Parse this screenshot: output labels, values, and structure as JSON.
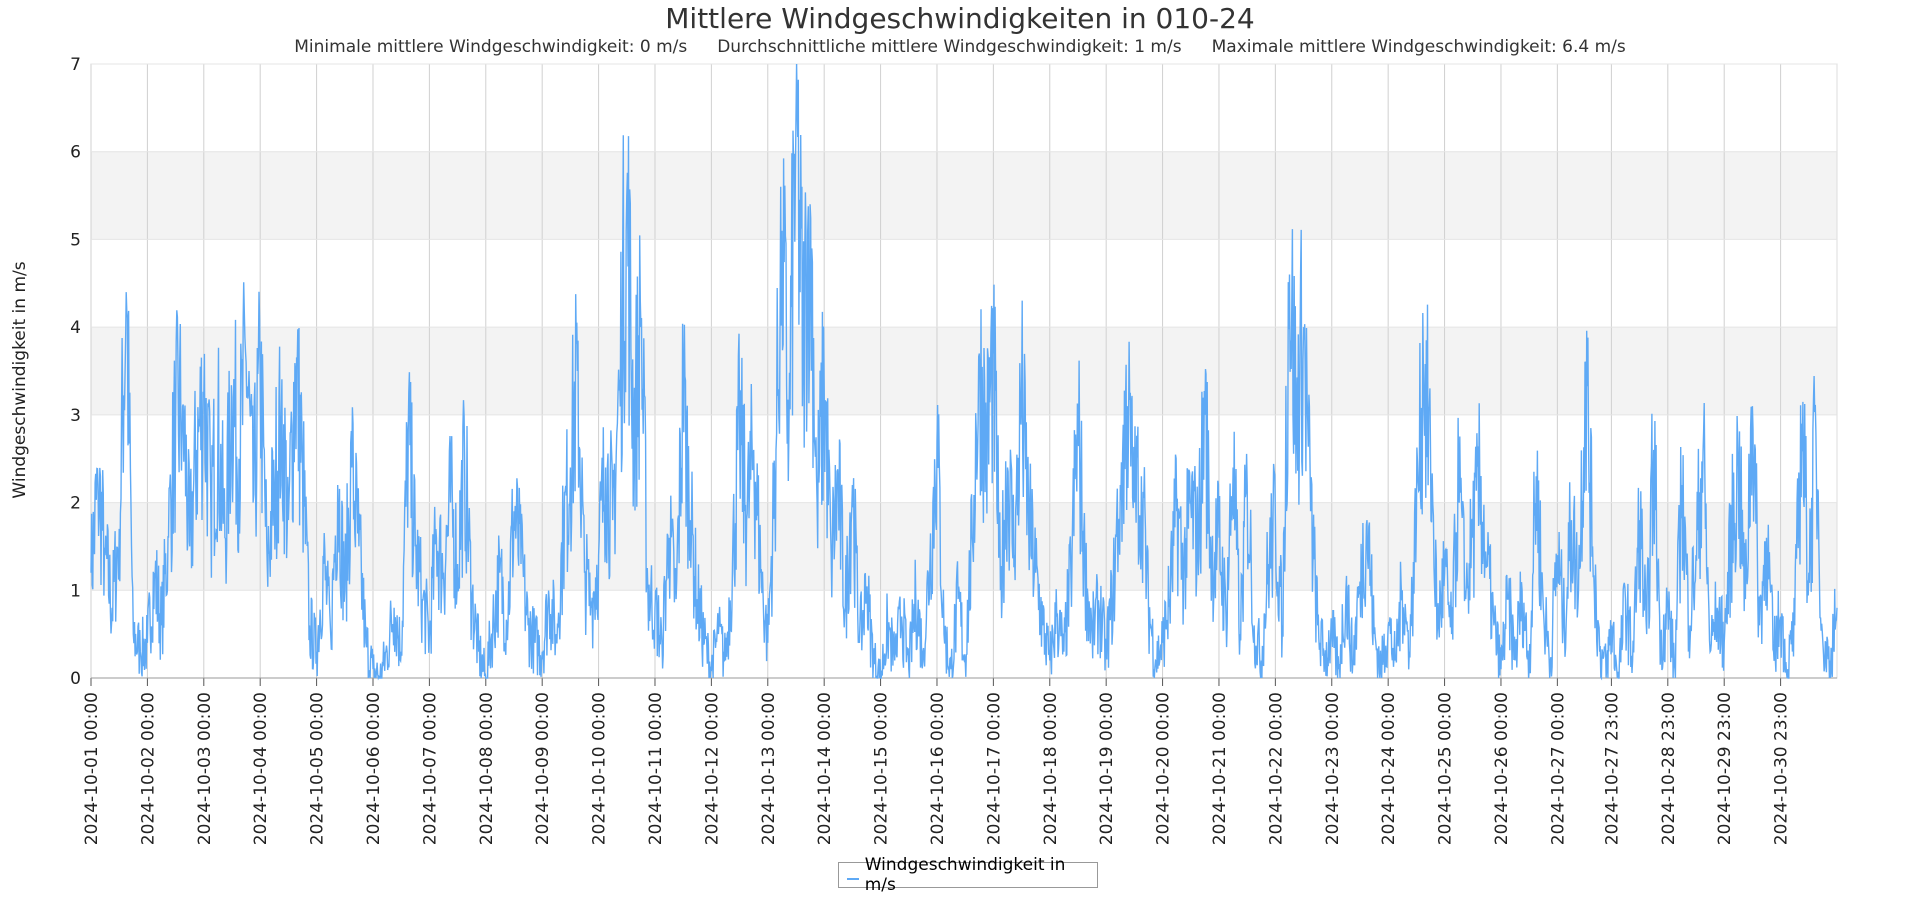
{
  "chart_data": {
    "type": "line",
    "title": "Mittlere Windgeschwindigkeiten in 010-24",
    "subtitle": {
      "min": "Minimale mittlere Windgeschwindigkeit: 0 m/s",
      "avg": "Durchschnittliche mittlere Windgeschwindigkeit: 1 m/s",
      "max": "Maximale mittlere Windgeschwindigkeit: 6.4 m/s"
    },
    "xlabel": "",
    "ylabel": "Windgeschwindigkeit in m/s",
    "ylim": [
      0,
      7
    ],
    "yticks": [
      0,
      1,
      2,
      3,
      4,
      5,
      6,
      7
    ],
    "grid": true,
    "legend_placement": "bottom-center",
    "x_tick_labels": [
      "2024-10-01 00:00",
      "2024-10-02 00:00",
      "2024-10-03 00:00",
      "2024-10-04 00:00",
      "2024-10-05 00:00",
      "2024-10-06 00:00",
      "2024-10-07 00:00",
      "2024-10-08 00:00",
      "2024-10-09 00:00",
      "2024-10-10 00:00",
      "2024-10-11 00:00",
      "2024-10-12 00:00",
      "2024-10-13 00:00",
      "2024-10-14 00:00",
      "2024-10-15 00:00",
      "2024-10-16 00:00",
      "2024-10-17 00:00",
      "2024-10-18 00:00",
      "2024-10-19 00:00",
      "2024-10-20 00:00",
      "2024-10-21 00:00",
      "2024-10-22 00:00",
      "2024-10-23 00:00",
      "2024-10-24 00:00",
      "2024-10-25 00:00",
      "2024-10-26 00:00",
      "2024-10-27 00:00",
      "2024-10-27 23:00",
      "2024-10-28 23:00",
      "2024-10-29 23:00",
      "2024-10-30 23:00"
    ],
    "series": [
      {
        "name": "Windgeschwindigkeit in m/s",
        "color": "#5ea9f5",
        "points": [
          [
            "2024-10-01 00:00",
            1.2
          ],
          [
            "2024-10-01 03:00",
            2.2
          ],
          [
            "2024-10-01 06:00",
            1.4
          ],
          [
            "2024-10-01 09:00",
            0.8
          ],
          [
            "2024-10-01 12:00",
            1.7
          ],
          [
            "2024-10-01 15:00",
            4.4
          ],
          [
            "2024-10-01 18:00",
            0.5
          ],
          [
            "2024-10-01 21:00",
            0.3
          ],
          [
            "2024-10-02 00:00",
            0.4
          ],
          [
            "2024-10-02 03:00",
            1.2
          ],
          [
            "2024-10-02 06:00",
            0.6
          ],
          [
            "2024-10-02 09:00",
            1.6
          ],
          [
            "2024-10-02 12:00",
            2.9
          ],
          [
            "2024-10-02 15:00",
            3.1
          ],
          [
            "2024-10-02 18:00",
            1.5
          ],
          [
            "2024-10-02 21:00",
            2.6
          ],
          [
            "2024-10-03 00:00",
            3.2
          ],
          [
            "2024-10-03 03:00",
            2.0
          ],
          [
            "2024-10-03 06:00",
            2.8
          ],
          [
            "2024-10-03 09:00",
            1.6
          ],
          [
            "2024-10-03 12:00",
            3.2
          ],
          [
            "2024-10-03 15:00",
            2.5
          ],
          [
            "2024-10-03 18:00",
            3.6
          ],
          [
            "2024-10-03 21:00",
            2.0
          ],
          [
            "2024-10-04 00:00",
            3.4
          ],
          [
            "2024-10-04 03:00",
            1.3
          ],
          [
            "2024-10-04 06:00",
            2.2
          ],
          [
            "2024-10-04 09:00",
            3.0
          ],
          [
            "2024-10-04 12:00",
            1.8
          ],
          [
            "2024-10-04 15:00",
            3.5
          ],
          [
            "2024-10-04 18:00",
            2.4
          ],
          [
            "2024-10-04 21:00",
            0.6
          ],
          [
            "2024-10-05 00:00",
            0.3
          ],
          [
            "2024-10-05 03:00",
            1.3
          ],
          [
            "2024-10-05 06:00",
            0.5
          ],
          [
            "2024-10-05 09:00",
            2.2
          ],
          [
            "2024-10-05 12:00",
            1.0
          ],
          [
            "2024-10-05 15:00",
            2.4
          ],
          [
            "2024-10-05 18:00",
            1.5
          ],
          [
            "2024-10-05 21:00",
            0.4
          ],
          [
            "2024-10-06 00:00",
            0.1
          ],
          [
            "2024-10-06 03:00",
            0.0
          ],
          [
            "2024-10-06 06:00",
            0.3
          ],
          [
            "2024-10-06 09:00",
            0.8
          ],
          [
            "2024-10-06 12:00",
            0.3
          ],
          [
            "2024-10-06 15:00",
            2.8
          ],
          [
            "2024-10-06 18:00",
            1.5
          ],
          [
            "2024-10-06 21:00",
            0.9
          ],
          [
            "2024-10-07 00:00",
            0.5
          ],
          [
            "2024-10-07 03:00",
            1.6
          ],
          [
            "2024-10-07 06:00",
            1.2
          ],
          [
            "2024-10-07 09:00",
            2.0
          ],
          [
            "2024-10-07 12:00",
            1.3
          ],
          [
            "2024-10-07 15:00",
            2.5
          ],
          [
            "2024-10-07 18:00",
            0.9
          ],
          [
            "2024-10-07 21:00",
            0.3
          ],
          [
            "2024-10-08 00:00",
            0.0
          ],
          [
            "2024-10-08 03:00",
            0.6
          ],
          [
            "2024-10-08 06:00",
            1.2
          ],
          [
            "2024-10-08 09:00",
            0.6
          ],
          [
            "2024-10-08 12:00",
            1.9
          ],
          [
            "2024-10-08 15:00",
            1.3
          ],
          [
            "2024-10-08 18:00",
            0.6
          ],
          [
            "2024-10-08 21:00",
            0.4
          ],
          [
            "2024-10-09 00:00",
            0.3
          ],
          [
            "2024-10-09 03:00",
            0.9
          ],
          [
            "2024-10-09 06:00",
            0.5
          ],
          [
            "2024-10-09 09:00",
            1.6
          ],
          [
            "2024-10-09 12:00",
            2.4
          ],
          [
            "2024-10-09 15:00",
            3.5
          ],
          [
            "2024-10-09 18:00",
            1.2
          ],
          [
            "2024-10-09 21:00",
            0.8
          ],
          [
            "2024-10-10 00:00",
            1.4
          ],
          [
            "2024-10-10 03:00",
            2.4
          ],
          [
            "2024-10-10 06:00",
            1.8
          ],
          [
            "2024-10-10 09:00",
            3.4
          ],
          [
            "2024-10-10 12:00",
            5.5
          ],
          [
            "2024-10-10 15:00",
            2.8
          ],
          [
            "2024-10-10 18:00",
            4.0
          ],
          [
            "2024-10-10 21:00",
            1.0
          ],
          [
            "2024-10-11 00:00",
            0.8
          ],
          [
            "2024-10-11 03:00",
            0.4
          ],
          [
            "2024-10-11 06:00",
            1.6
          ],
          [
            "2024-10-11 09:00",
            0.9
          ],
          [
            "2024-10-11 12:00",
            3.3
          ],
          [
            "2024-10-11 15:00",
            1.8
          ],
          [
            "2024-10-11 18:00",
            0.9
          ],
          [
            "2024-10-11 21:00",
            0.4
          ],
          [
            "2024-10-12 00:00",
            0.1
          ],
          [
            "2024-10-12 03:00",
            0.5
          ],
          [
            "2024-10-12 06:00",
            0.2
          ],
          [
            "2024-10-12 09:00",
            1.3
          ],
          [
            "2024-10-12 12:00",
            2.9
          ],
          [
            "2024-10-12 15:00",
            1.8
          ],
          [
            "2024-10-12 18:00",
            2.6
          ],
          [
            "2024-10-12 21:00",
            1.2
          ],
          [
            "2024-10-13 00:00",
            0.4
          ],
          [
            "2024-10-13 03:00",
            2.2
          ],
          [
            "2024-10-13 06:00",
            5.1
          ],
          [
            "2024-10-13 09:00",
            2.8
          ],
          [
            "2024-10-13 12:00",
            6.4
          ],
          [
            "2024-10-13 15:00",
            3.8
          ],
          [
            "2024-10-13 18:00",
            5.4
          ],
          [
            "2024-10-13 21:00",
            2.0
          ],
          [
            "2024-10-14 00:00",
            3.3
          ],
          [
            "2024-10-14 03:00",
            1.4
          ],
          [
            "2024-10-14 06:00",
            2.2
          ],
          [
            "2024-10-14 09:00",
            0.8
          ],
          [
            "2024-10-14 12:00",
            2.2
          ],
          [
            "2024-10-14 15:00",
            0.4
          ],
          [
            "2024-10-14 18:00",
            1.0
          ],
          [
            "2024-10-14 21:00",
            0.2
          ],
          [
            "2024-10-15 00:00",
            0.0
          ],
          [
            "2024-10-15 03:00",
            0.6
          ],
          [
            "2024-10-15 06:00",
            0.2
          ],
          [
            "2024-10-15 09:00",
            0.7
          ],
          [
            "2024-10-15 12:00",
            0.1
          ],
          [
            "2024-10-15 15:00",
            0.9
          ],
          [
            "2024-10-15 18:00",
            0.3
          ],
          [
            "2024-10-15 21:00",
            1.3
          ],
          [
            "2024-10-16 00:00",
            2.7
          ],
          [
            "2024-10-16 03:00",
            0.5
          ],
          [
            "2024-10-16 06:00",
            0.1
          ],
          [
            "2024-10-16 09:00",
            0.9
          ],
          [
            "2024-10-16 12:00",
            0.2
          ],
          [
            "2024-10-16 15:00",
            1.6
          ],
          [
            "2024-10-16 18:00",
            3.7
          ],
          [
            "2024-10-16 21:00",
            2.6
          ],
          [
            "2024-10-17 00:00",
            3.7
          ],
          [
            "2024-10-17 03:00",
            1.0
          ],
          [
            "2024-10-17 06:00",
            2.4
          ],
          [
            "2024-10-17 09:00",
            1.4
          ],
          [
            "2024-10-17 12:00",
            3.2
          ],
          [
            "2024-10-17 15:00",
            1.8
          ],
          [
            "2024-10-17 18:00",
            1.2
          ],
          [
            "2024-10-17 21:00",
            0.6
          ],
          [
            "2024-10-18 00:00",
            0.2
          ],
          [
            "2024-10-18 03:00",
            0.7
          ],
          [
            "2024-10-18 06:00",
            0.3
          ],
          [
            "2024-10-18 09:00",
            1.2
          ],
          [
            "2024-10-18 12:00",
            2.9
          ],
          [
            "2024-10-18 15:00",
            1.2
          ],
          [
            "2024-10-18 18:00",
            0.5
          ],
          [
            "2024-10-18 21:00",
            0.8
          ],
          [
            "2024-10-19 00:00",
            0.3
          ],
          [
            "2024-10-19 03:00",
            1.0
          ],
          [
            "2024-10-19 06:00",
            2.2
          ],
          [
            "2024-10-19 09:00",
            3.1
          ],
          [
            "2024-10-19 12:00",
            2.0
          ],
          [
            "2024-10-19 15:00",
            2.3
          ],
          [
            "2024-10-19 18:00",
            0.8
          ],
          [
            "2024-10-19 21:00",
            0.2
          ],
          [
            "2024-10-20 00:00",
            0.4
          ],
          [
            "2024-10-20 03:00",
            0.9
          ],
          [
            "2024-10-20 06:00",
            1.9
          ],
          [
            "2024-10-20 09:00",
            1.2
          ],
          [
            "2024-10-20 12:00",
            2.0
          ],
          [
            "2024-10-20 15:00",
            1.5
          ],
          [
            "2024-10-20 18:00",
            3.0
          ],
          [
            "2024-10-20 21:00",
            1.3
          ],
          [
            "2024-10-21 00:00",
            1.6
          ],
          [
            "2024-10-21 03:00",
            0.7
          ],
          [
            "2024-10-21 06:00",
            2.4
          ],
          [
            "2024-10-21 09:00",
            0.5
          ],
          [
            "2024-10-21 12:00",
            2.2
          ],
          [
            "2024-10-21 15:00",
            0.6
          ],
          [
            "2024-10-21 18:00",
            0.2
          ],
          [
            "2024-10-21 21:00",
            1.3
          ],
          [
            "2024-10-22 00:00",
            1.8
          ],
          [
            "2024-10-22 03:00",
            0.6
          ],
          [
            "2024-10-22 06:00",
            4.6
          ],
          [
            "2024-10-22 09:00",
            3.0
          ],
          [
            "2024-10-22 12:00",
            4.0
          ],
          [
            "2024-10-22 15:00",
            1.9
          ],
          [
            "2024-10-22 18:00",
            0.6
          ],
          [
            "2024-10-22 21:00",
            0.2
          ],
          [
            "2024-10-23 00:00",
            0.5
          ],
          [
            "2024-10-23 03:00",
            0.1
          ],
          [
            "2024-10-23 06:00",
            1.0
          ],
          [
            "2024-10-23 09:00",
            0.2
          ],
          [
            "2024-10-23 12:00",
            1.1
          ],
          [
            "2024-10-23 15:00",
            1.8
          ],
          [
            "2024-10-23 18:00",
            0.5
          ],
          [
            "2024-10-23 21:00",
            0.1
          ],
          [
            "2024-10-24 00:00",
            0.6
          ],
          [
            "2024-10-24 03:00",
            0.2
          ],
          [
            "2024-10-24 06:00",
            1.0
          ],
          [
            "2024-10-24 09:00",
            0.3
          ],
          [
            "2024-10-24 12:00",
            1.8
          ],
          [
            "2024-10-24 15:00",
            3.5
          ],
          [
            "2024-10-24 18:00",
            2.6
          ],
          [
            "2024-10-24 21:00",
            0.6
          ],
          [
            "2024-10-25 00:00",
            1.2
          ],
          [
            "2024-10-25 03:00",
            0.5
          ],
          [
            "2024-10-25 06:00",
            2.2
          ],
          [
            "2024-10-25 09:00",
            0.9
          ],
          [
            "2024-10-25 12:00",
            1.6
          ],
          [
            "2024-10-25 15:00",
            2.2
          ],
          [
            "2024-10-25 18:00",
            1.3
          ],
          [
            "2024-10-25 21:00",
            0.6
          ],
          [
            "2024-10-26 00:00",
            0.1
          ],
          [
            "2024-10-26 03:00",
            0.9
          ],
          [
            "2024-10-26 06:00",
            0.2
          ],
          [
            "2024-10-26 09:00",
            1.0
          ],
          [
            "2024-10-26 12:00",
            0.1
          ],
          [
            "2024-10-26 15:00",
            2.3
          ],
          [
            "2024-10-26 18:00",
            0.8
          ],
          [
            "2024-10-26 21:00",
            0.2
          ],
          [
            "2024-10-27 00:00",
            1.4
          ],
          [
            "2024-10-27 03:00",
            0.6
          ],
          [
            "2024-10-27 06:00",
            1.8
          ],
          [
            "2024-10-27 09:00",
            1.0
          ],
          [
            "2024-10-27 12:00",
            3.6
          ],
          [
            "2024-10-27 15:00",
            1.5
          ],
          [
            "2024-10-27 18:00",
            0.3
          ],
          [
            "2024-10-27 21:00",
            0.1
          ],
          [
            "2024-10-27 23:00",
            0.6
          ],
          [
            "2024-10-28 02:00",
            0.0
          ],
          [
            "2024-10-28 05:00",
            0.9
          ],
          [
            "2024-10-28 08:00",
            0.2
          ],
          [
            "2024-10-28 11:00",
            1.8
          ],
          [
            "2024-10-28 14:00",
            0.5
          ],
          [
            "2024-10-28 17:00",
            2.6
          ],
          [
            "2024-10-28 20:00",
            0.4
          ],
          [
            "2024-10-28 23:00",
            0.8
          ],
          [
            "2024-10-29 02:00",
            0.1
          ],
          [
            "2024-10-29 05:00",
            2.2
          ],
          [
            "2024-10-29 08:00",
            0.6
          ],
          [
            "2024-10-29 11:00",
            1.4
          ],
          [
            "2024-10-29 14:00",
            2.6
          ],
          [
            "2024-10-29 17:00",
            0.3
          ],
          [
            "2024-10-29 20:00",
            0.8
          ],
          [
            "2024-10-29 23:00",
            0.4
          ],
          [
            "2024-10-30 02:00",
            1.6
          ],
          [
            "2024-10-30 05:00",
            2.4
          ],
          [
            "2024-10-30 08:00",
            0.9
          ],
          [
            "2024-10-30 11:00",
            3.1
          ],
          [
            "2024-10-30 14:00",
            0.6
          ],
          [
            "2024-10-30 17:00",
            1.6
          ],
          [
            "2024-10-30 20:00",
            0.3
          ],
          [
            "2024-10-30 23:00",
            0.7
          ],
          [
            "2024-10-31 02:00",
            0.1
          ],
          [
            "2024-10-31 05:00",
            0.6
          ],
          [
            "2024-10-31 08:00",
            2.9
          ],
          [
            "2024-10-31 11:00",
            1.2
          ],
          [
            "2024-10-31 14:00",
            2.8
          ],
          [
            "2024-10-31 17:00",
            0.4
          ],
          [
            "2024-10-31 20:00",
            0.2
          ],
          [
            "2024-10-31 23:00",
            0.8
          ]
        ]
      }
    ]
  }
}
